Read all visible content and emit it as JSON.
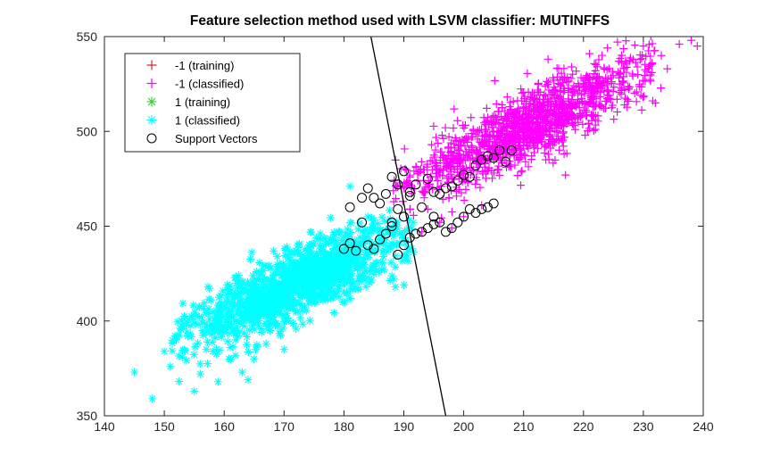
{
  "chart_data": {
    "type": "scatter",
    "title": "Feature selection method used with LSVM classifier: MUTINFFS",
    "xlabel": "",
    "ylabel": "",
    "xlim": [
      140,
      240
    ],
    "ylim": [
      350,
      550
    ],
    "xticks": [
      "140",
      "150",
      "160",
      "170",
      "180",
      "190",
      "200",
      "210",
      "220",
      "230",
      "240"
    ],
    "yticks": [
      "350",
      "400",
      "450",
      "500",
      "550"
    ],
    "grid": false,
    "legend_position": "top-left",
    "legend": [
      {
        "label": "-1 (training)",
        "marker": "plus",
        "color": "#d62728"
      },
      {
        "label": "-1 (classified)",
        "marker": "plus",
        "color": "#ff00ff"
      },
      {
        "label": "1 (training)",
        "marker": "asterisk",
        "color": "#33cc33"
      },
      {
        "label": "1 (classified)",
        "marker": "asterisk",
        "color": "#00ffff"
      },
      {
        "label": "Support Vectors",
        "marker": "circle",
        "color": "#000000"
      }
    ],
    "decision_boundary": {
      "x": [
        184.5,
        197
      ],
      "y": [
        550,
        350
      ],
      "color": "#000000"
    },
    "series": [
      {
        "name": "1 (classified)",
        "marker": "asterisk",
        "color": "#00ffff",
        "points": [
          [
            145,
            373
          ],
          [
            148,
            359
          ],
          [
            151,
            376
          ],
          [
            153,
            381
          ],
          [
            155,
            363
          ],
          [
            156,
            372
          ],
          [
            157,
            385
          ],
          [
            159,
            368
          ],
          [
            161,
            386
          ],
          [
            163,
            373
          ],
          [
            164,
            369
          ],
          [
            152,
            390
          ],
          [
            150,
            384
          ],
          [
            158,
            398
          ],
          [
            160,
            394
          ],
          [
            165,
            380
          ],
          [
            167,
            388
          ],
          [
            170,
            385
          ],
          [
            172,
            396
          ],
          [
            168,
            402
          ],
          [
            175,
            412
          ],
          [
            181,
            471
          ],
          [
            184,
            455
          ],
          [
            186,
            448
          ],
          [
            188,
            441
          ],
          [
            183,
            428
          ],
          [
            178,
            431
          ]
        ],
        "cloud": {
          "x_range": [
            153,
            191
          ],
          "center_slope": 1.43,
          "center_at_x150": 388,
          "spread": 9,
          "count": 1300
        }
      },
      {
        "name": "-1 (classified)",
        "marker": "plus",
        "color": "#ff00ff",
        "points": [
          [
            191,
            476
          ],
          [
            193,
            447
          ],
          [
            194,
            459
          ],
          [
            196,
            452
          ],
          [
            198,
            449
          ],
          [
            200,
            455
          ],
          [
            203,
            461
          ],
          [
            217,
            477
          ],
          [
            227,
            537
          ],
          [
            230,
            545
          ],
          [
            232,
            515
          ],
          [
            233,
            540
          ],
          [
            236,
            546
          ],
          [
            238,
            548
          ],
          [
            239,
            545
          ],
          [
            234,
            533
          ],
          [
            212,
            512
          ],
          [
            215,
            527
          ],
          [
            218,
            534
          ],
          [
            221,
            541
          ],
          [
            224,
            544
          ]
        ],
        "cloud": {
          "x_range": [
            190,
            232
          ],
          "center_slope": 1.55,
          "center_at_x190": 470,
          "spread": 9,
          "count": 1300
        }
      },
      {
        "name": "Support Vectors",
        "marker": "circle",
        "color": "#000000",
        "points": [
          [
            184,
            470
          ],
          [
            185,
            465
          ],
          [
            186,
            462
          ],
          [
            187,
            467
          ],
          [
            188,
            476
          ],
          [
            189,
            472
          ],
          [
            189,
            459
          ],
          [
            190,
            455
          ],
          [
            190,
            479
          ],
          [
            191,
            468
          ],
          [
            191,
            466
          ],
          [
            192,
            472
          ],
          [
            193,
            460
          ],
          [
            194,
            475
          ],
          [
            195,
            468
          ],
          [
            196,
            467
          ],
          [
            197,
            470
          ],
          [
            198,
            471
          ],
          [
            199,
            474
          ],
          [
            200,
            477
          ],
          [
            201,
            476
          ],
          [
            202,
            482
          ],
          [
            203,
            485
          ],
          [
            204,
            487
          ],
          [
            205,
            486
          ],
          [
            206,
            490
          ],
          [
            207,
            484
          ],
          [
            208,
            490
          ],
          [
            184,
            440
          ],
          [
            185,
            438
          ],
          [
            186,
            443
          ],
          [
            187,
            446
          ],
          [
            188,
            450
          ],
          [
            188,
            452
          ],
          [
            189,
            435
          ],
          [
            190,
            440
          ],
          [
            191,
            444
          ],
          [
            192,
            446
          ],
          [
            193,
            447
          ],
          [
            194,
            449
          ],
          [
            195,
            455
          ],
          [
            195,
            451
          ],
          [
            196,
            452
          ],
          [
            197,
            447
          ],
          [
            198,
            449
          ],
          [
            199,
            452
          ],
          [
            200,
            455
          ],
          [
            201,
            459
          ],
          [
            202,
            457
          ],
          [
            203,
            459
          ],
          [
            204,
            460
          ],
          [
            205,
            462
          ],
          [
            180,
            438
          ],
          [
            181,
            441
          ],
          [
            182,
            437
          ],
          [
            183,
            452
          ],
          [
            181,
            460
          ],
          [
            183,
            465
          ]
        ]
      }
    ]
  }
}
